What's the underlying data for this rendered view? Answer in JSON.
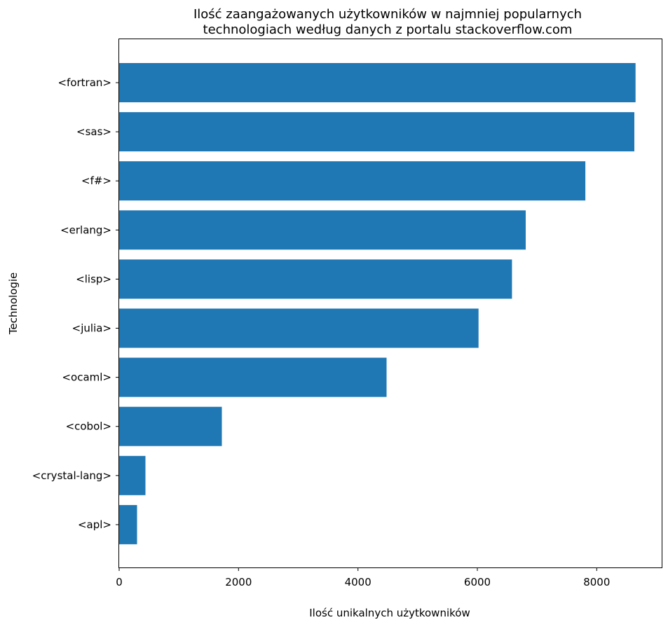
{
  "chart_data": {
    "type": "bar",
    "orientation": "horizontal",
    "title_line1": "Ilość zaangażowanych użytkowników w najmniej popularnych",
    "title_line2": "technologiach według danych z portalu stackoverflow.com",
    "xlabel": "Ilość unikalnych użytkowników",
    "ylabel": "Technologie",
    "xlim": [
      0,
      9100
    ],
    "xticks": [
      0,
      2000,
      4000,
      6000,
      8000
    ],
    "categories": [
      "<fortran>",
      "<sas>",
      "<f#>",
      "<erlang>",
      "<lisp>",
      "<julia>",
      "<ocaml>",
      "<cobol>",
      "<crystal-lang>",
      "<apl>"
    ],
    "values": [
      8650,
      8630,
      7810,
      6810,
      6580,
      6020,
      4480,
      1720,
      440,
      300
    ],
    "bar_color": "#1f77b4",
    "grid": false
  }
}
